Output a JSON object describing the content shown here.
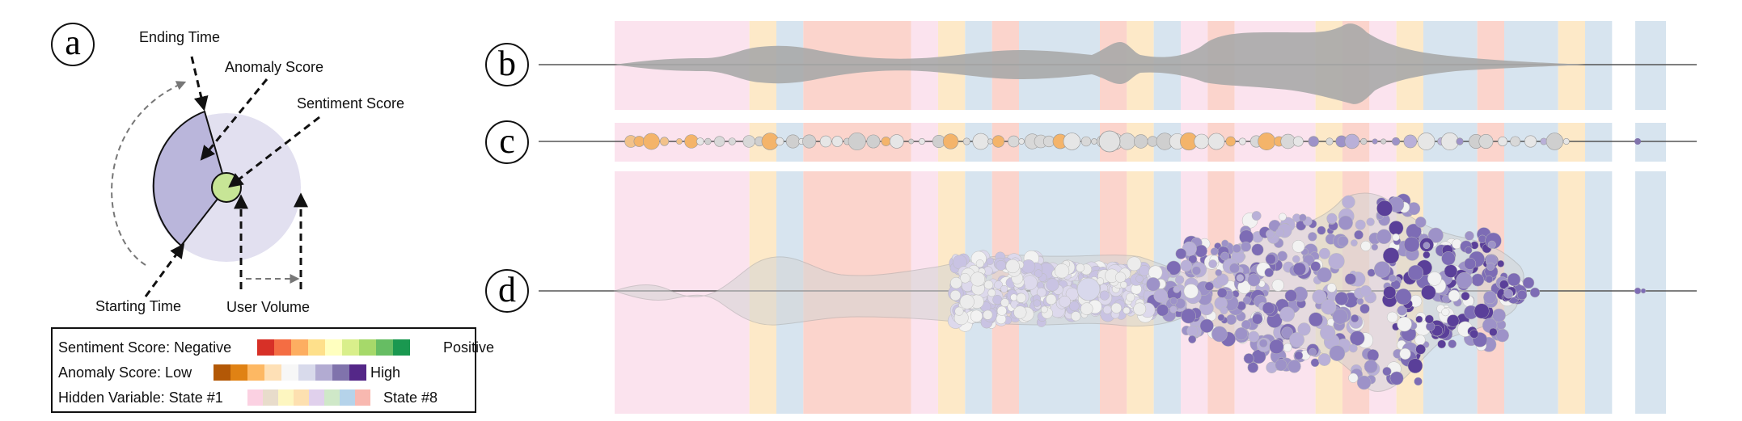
{
  "panels": {
    "a": "a",
    "b": "b",
    "c": "c",
    "d": "d"
  },
  "glyph_annotations": {
    "ending_time": "Ending Time",
    "anomaly_score": "Anomaly Score",
    "sentiment_score": "Sentiment Score",
    "starting_time": "Starting Time",
    "user_volume": "User Volume"
  },
  "legend": {
    "sentiment": {
      "label": "Sentiment Score: Negative",
      "end_label": "Positive",
      "colors": [
        "#d73027",
        "#f46d43",
        "#fdae61",
        "#fee08b",
        "#ffffbf",
        "#d9ef8b",
        "#a6d96a",
        "#66bd63",
        "#1a9850"
      ]
    },
    "anomaly": {
      "label": "Anomaly Score: Low",
      "end_label": "High",
      "colors": [
        "#b35806",
        "#e08214",
        "#fdb863",
        "#fee0b6",
        "#f7f7f7",
        "#d8daeb",
        "#b2abd2",
        "#8073ac",
        "#542788"
      ]
    },
    "hidden": {
      "label": "Hidden Variable: State #1",
      "end_label": "State #8",
      "colors": [
        "#fbd1e2",
        "#e8dccb",
        "#fdf6c0",
        "#fde0b0",
        "#e0d0ec",
        "#cfe8c8",
        "#b5d3ea",
        "#f8b8b0"
      ]
    }
  },
  "timeline": {
    "state_bands": [
      {
        "state": 1,
        "color": "#fbe3ee",
        "start": 0,
        "end": 50
      },
      {
        "state": 4,
        "color": "#fde9c8",
        "start": 50,
        "end": 10
      },
      {
        "state": 7,
        "color": "#d7e4ef",
        "start": 60,
        "end": 10
      },
      {
        "state": 8,
        "color": "#fbd4cc",
        "start": 70,
        "end": 40
      },
      {
        "state": 1,
        "color": "#fbe3ee",
        "start": 110,
        "end": 10
      },
      {
        "state": 4,
        "color": "#fde9c8",
        "start": 120,
        "end": 10
      },
      {
        "state": 7,
        "color": "#d7e4ef",
        "start": 130,
        "end": 10
      },
      {
        "state": 8,
        "color": "#fbd4cc",
        "start": 140,
        "end": 10
      },
      {
        "state": 7,
        "color": "#d7e4ef",
        "start": 150,
        "end": 30
      },
      {
        "state": 8,
        "color": "#fbd4cc",
        "start": 180,
        "end": 10
      },
      {
        "state": 4,
        "color": "#fde9c8",
        "start": 190,
        "end": 10
      },
      {
        "state": 7,
        "color": "#d7e4ef",
        "start": 200,
        "end": 10
      },
      {
        "state": 1,
        "color": "#fbe3ee",
        "start": 210,
        "end": 10
      },
      {
        "state": 8,
        "color": "#fbd4cc",
        "start": 220,
        "end": 10
      },
      {
        "state": 1,
        "color": "#fbe3ee",
        "start": 230,
        "end": 30
      },
      {
        "state": 4,
        "color": "#fde9c8",
        "start": 260,
        "end": 10
      },
      {
        "state": 8,
        "color": "#fbd4cc",
        "start": 270,
        "end": 10
      },
      {
        "state": 1,
        "color": "#fbe3ee",
        "start": 280,
        "end": 10
      },
      {
        "state": 4,
        "color": "#fde9c8",
        "start": 290,
        "end": 10
      },
      {
        "state": 7,
        "color": "#d7e4ef",
        "start": 300,
        "end": 20
      },
      {
        "state": 8,
        "color": "#fbd4cc",
        "start": 320,
        "end": 10
      },
      {
        "state": 7,
        "color": "#d7e4ef",
        "start": 330,
        "end": 20
      },
      {
        "state": 4,
        "color": "#fde9c8",
        "start": 350,
        "end": 10
      },
      {
        "state": 7,
        "color": "#d7e4ef",
        "start": 360,
        "end": 10
      },
      {
        "state": 7,
        "color": "#d7e4ef",
        "start": 380,
        "end": 10
      }
    ]
  }
}
